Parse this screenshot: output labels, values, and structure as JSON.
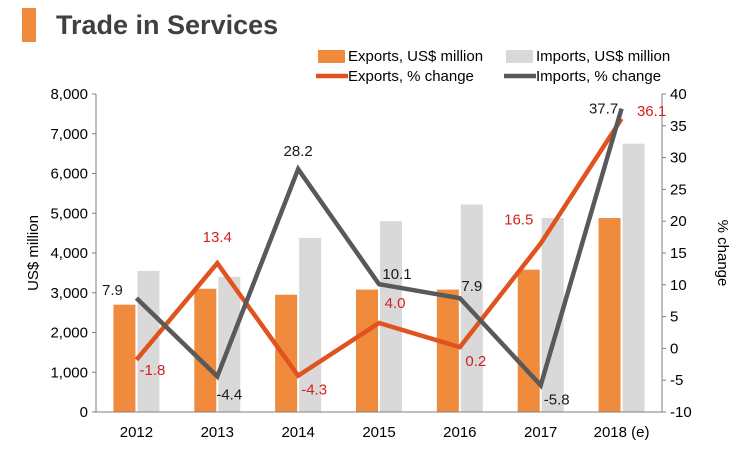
{
  "page": {
    "title": "Trade in Services"
  },
  "colors": {
    "exports_bar": "#F08A3C",
    "imports_bar": "#D9D9D9",
    "exports_line": "#E0531F",
    "imports_line": "#595959",
    "exports_label": "#D42020",
    "imports_label": "#1A1A1A",
    "title_accent": "#F08A3C",
    "axis_text": "#000000"
  },
  "chart_data": {
    "type": "bar+line",
    "title": "Trade in Services",
    "categories": [
      "2012",
      "2013",
      "2014",
      "2015",
      "2016",
      "2017",
      "2018 (e)"
    ],
    "ylabel": "US$ million",
    "y2label": "% change",
    "ylim": [
      0,
      8000
    ],
    "y2lim": [
      -10,
      40
    ],
    "yticks": [
      0,
      1000,
      2000,
      3000,
      4000,
      5000,
      6000,
      7000,
      8000
    ],
    "ytick_labels": [
      "0",
      "1,000",
      "2,000",
      "3,000",
      "4,000",
      "5,000",
      "6,000",
      "7,000",
      "8,000"
    ],
    "y2ticks": [
      -10,
      -5,
      0,
      5,
      10,
      15,
      20,
      25,
      30,
      35,
      40
    ],
    "y2tick_labels": [
      "-10",
      "-5",
      "0",
      "5",
      "10",
      "15",
      "20",
      "25",
      "30",
      "35",
      "40"
    ],
    "grid": false,
    "legend_position": "top-right",
    "bar_series": [
      {
        "name": "Exports, US$ million",
        "values": [
          2700,
          3100,
          2950,
          3080,
          3080,
          3580,
          4880
        ]
      },
      {
        "name": "Imports, US$ million",
        "values": [
          3550,
          3400,
          4380,
          4800,
          5220,
          4880,
          6750
        ]
      }
    ],
    "line_series": [
      {
        "name": "Exports, % change",
        "values": [
          -1.8,
          13.4,
          -4.3,
          4.0,
          0.2,
          16.5,
          36.1
        ],
        "labels": [
          "-1.8",
          "13.4",
          "-4.3",
          "4.0",
          "0.2",
          "16.5",
          "36.1"
        ]
      },
      {
        "name": "Imports, % change",
        "values": [
          7.9,
          -4.4,
          28.2,
          10.1,
          7.9,
          -5.8,
          37.7
        ],
        "labels": [
          "7.9",
          "-4.4",
          "28.2",
          "10.1",
          "7.9",
          "-5.8",
          "37.7"
        ]
      }
    ]
  }
}
